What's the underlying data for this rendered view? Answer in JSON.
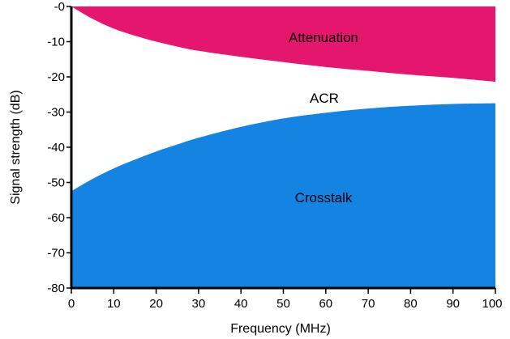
{
  "chart_data": {
    "type": "area",
    "xlabel": "Frequency (MHz)",
    "ylabel": "Signal strength (dB)",
    "xlim": [
      0,
      100
    ],
    "ylim": [
      -80,
      0
    ],
    "x_ticks": [
      "0",
      "10",
      "20",
      "30",
      "40",
      "50",
      "60",
      "70",
      "80",
      "90",
      "100"
    ],
    "y_ticks": [
      "-0",
      "-10",
      "-20",
      "-30",
      "-40",
      "-50",
      "-60",
      "-70",
      "-80"
    ],
    "grid": false,
    "series": [
      {
        "name": "Attenuation",
        "color": "#e5166e",
        "x": [
          0,
          5,
          10,
          15,
          20,
          25,
          30,
          40,
          50,
          60,
          70,
          80,
          90,
          100
        ],
        "y": [
          0,
          -3.5,
          -6.3,
          -8.3,
          -10,
          -11.4,
          -12.6,
          -14.3,
          -15.8,
          -17.2,
          -18.3,
          -19.4,
          -20.3,
          -21.4
        ]
      },
      {
        "name": "Crosstalk",
        "color": "#1583e1",
        "x": [
          0,
          5,
          10,
          15,
          20,
          25,
          30,
          40,
          50,
          60,
          70,
          80,
          90,
          100
        ],
        "y": [
          -52.5,
          -49,
          -46,
          -43.5,
          -41.2,
          -39.2,
          -37.3,
          -34.2,
          -31.8,
          -30.2,
          -29,
          -28.2,
          -27.7,
          -27.5
        ]
      }
    ],
    "region_labels": {
      "attenuation": "Attenuation",
      "acr": "ACR",
      "crosstalk": "Crosstalk"
    }
  }
}
